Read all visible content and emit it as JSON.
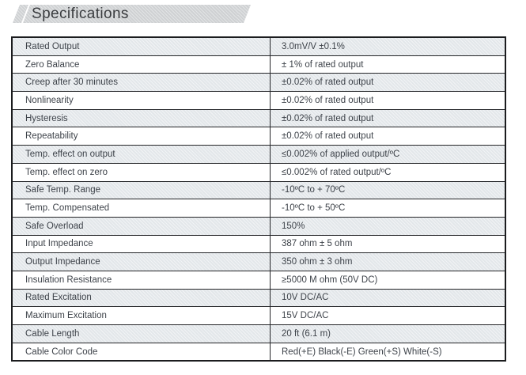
{
  "banner": {
    "title": "Specifications"
  },
  "colors": {
    "banner_bg": "#d3d5d7",
    "row_shade": "#e7ebee",
    "table_border": "#1b1c1e",
    "text": "#3e434a"
  },
  "table": {
    "rows": [
      {
        "label": "Rated Output",
        "value": "3.0mV/V ±0.1%"
      },
      {
        "label": "Zero Balance",
        "value": "± 1% of rated output"
      },
      {
        "label": "Creep after 30 minutes",
        "value": "±0.02% of rated output"
      },
      {
        "label": "Nonlinearity",
        "value": "±0.02% of rated output"
      },
      {
        "label": "Hysteresis",
        "value": "±0.02% of rated output"
      },
      {
        "label": "Repeatability",
        "value": "±0.02% of rated output"
      },
      {
        "label": "Temp. effect on output",
        "value": "≤0.002% of applied output/ºC"
      },
      {
        "label": "Temp. effect on zero",
        "value": "≤0.002% of rated output/ºC"
      },
      {
        "label": "Safe Temp. Range",
        "value": "-10ºC to + 70ºC"
      },
      {
        "label": "Temp. Compensated",
        "value": "-10ºC to + 50ºC"
      },
      {
        "label": "Safe Overload",
        "value": "150%"
      },
      {
        "label": "Input Impedance",
        "value": "387 ohm ± 5 ohm"
      },
      {
        "label": "Output Impedance",
        "value": "350 ohm ± 3 ohm"
      },
      {
        "label": "Insulation Resistance",
        "value": "≥5000 M ohm  (50V DC)"
      },
      {
        "label": "Rated Excitation",
        "value": "10V DC/AC"
      },
      {
        "label": "Maximum Excitation",
        "value": "15V DC/AC"
      },
      {
        "label": "Cable Length",
        "value": "20 ft (6.1 m)"
      },
      {
        "label": "Cable Color Code",
        "value": "Red(+E) Black(-E) Green(+S) White(-S)"
      }
    ]
  }
}
